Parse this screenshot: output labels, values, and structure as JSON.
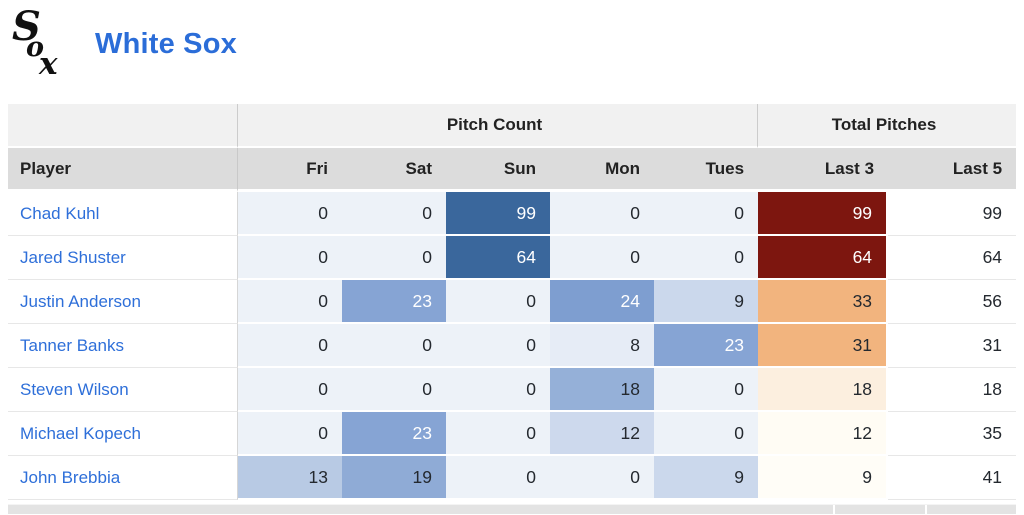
{
  "header": {
    "team_name": "White Sox",
    "logo_label": "Sox",
    "title_color": "#2b6dd8"
  },
  "colors": {
    "link_blue": "#2e6fd9",
    "heat_zero": "#edf2f8",
    "heat_dark_blue": "#3a679c",
    "heat_dark_red": "#7d160f",
    "heat_orange": "#f2b47e",
    "header_group_bg": "#f1f1f1",
    "header_cols_bg": "#dcdcdc"
  },
  "table": {
    "group_headers": [
      {
        "label": "",
        "span": 1
      },
      {
        "label": "Pitch Count",
        "span": 5
      },
      {
        "label": "Total Pitches",
        "span": 2
      }
    ],
    "column_headers": [
      "Player",
      "Fri",
      "Sat",
      "Sun",
      "Mon",
      "Tues",
      "Last 3",
      "Last 5"
    ],
    "rows": [
      {
        "player": "Chad Kuhl",
        "cells": [
          {
            "v": "0",
            "bg": "#edf2f8",
            "fg": "#24292f"
          },
          {
            "v": "0",
            "bg": "#edf2f8",
            "fg": "#24292f"
          },
          {
            "v": "99",
            "bg": "#3a679c",
            "fg": "#ffffff"
          },
          {
            "v": "0",
            "bg": "#edf2f8",
            "fg": "#24292f"
          },
          {
            "v": "0",
            "bg": "#edf2f8",
            "fg": "#24292f"
          },
          {
            "v": "99",
            "bg": "#7d160f",
            "fg": "#ffffff"
          },
          {
            "v": "99",
            "bg": "#ffffff",
            "fg": "#24292f"
          }
        ]
      },
      {
        "player": "Jared Shuster",
        "cells": [
          {
            "v": "0",
            "bg": "#edf2f8",
            "fg": "#24292f"
          },
          {
            "v": "0",
            "bg": "#edf2f8",
            "fg": "#24292f"
          },
          {
            "v": "64",
            "bg": "#3a679c",
            "fg": "#ffffff"
          },
          {
            "v": "0",
            "bg": "#edf2f8",
            "fg": "#24292f"
          },
          {
            "v": "0",
            "bg": "#edf2f8",
            "fg": "#24292f"
          },
          {
            "v": "64",
            "bg": "#7d160f",
            "fg": "#ffffff"
          },
          {
            "v": "64",
            "bg": "#ffffff",
            "fg": "#24292f"
          }
        ]
      },
      {
        "player": "Justin Anderson",
        "cells": [
          {
            "v": "0",
            "bg": "#edf2f8",
            "fg": "#24292f"
          },
          {
            "v": "23",
            "bg": "#86a4d4",
            "fg": "#ffffff"
          },
          {
            "v": "0",
            "bg": "#edf2f8",
            "fg": "#24292f"
          },
          {
            "v": "24",
            "bg": "#7e9ed0",
            "fg": "#ffffff"
          },
          {
            "v": "9",
            "bg": "#cbd8ec",
            "fg": "#24292f"
          },
          {
            "v": "33",
            "bg": "#f2b47e",
            "fg": "#24292f"
          },
          {
            "v": "56",
            "bg": "#ffffff",
            "fg": "#24292f"
          }
        ]
      },
      {
        "player": "Tanner Banks",
        "cells": [
          {
            "v": "0",
            "bg": "#edf2f8",
            "fg": "#24292f"
          },
          {
            "v": "0",
            "bg": "#edf2f8",
            "fg": "#24292f"
          },
          {
            "v": "0",
            "bg": "#edf2f8",
            "fg": "#24292f"
          },
          {
            "v": "8",
            "bg": "#e6ecf6",
            "fg": "#24292f"
          },
          {
            "v": "23",
            "bg": "#86a4d4",
            "fg": "#ffffff"
          },
          {
            "v": "31",
            "bg": "#f2b47e",
            "fg": "#24292f"
          },
          {
            "v": "31",
            "bg": "#ffffff",
            "fg": "#24292f"
          }
        ]
      },
      {
        "player": "Steven Wilson",
        "cells": [
          {
            "v": "0",
            "bg": "#edf2f8",
            "fg": "#24292f"
          },
          {
            "v": "0",
            "bg": "#edf2f8",
            "fg": "#24292f"
          },
          {
            "v": "0",
            "bg": "#edf2f8",
            "fg": "#24292f"
          },
          {
            "v": "18",
            "bg": "#95b0d8",
            "fg": "#24292f"
          },
          {
            "v": "0",
            "bg": "#edf2f8",
            "fg": "#24292f"
          },
          {
            "v": "18",
            "bg": "#fcefdf",
            "fg": "#24292f"
          },
          {
            "v": "18",
            "bg": "#ffffff",
            "fg": "#24292f"
          }
        ]
      },
      {
        "player": "Michael Kopech",
        "cells": [
          {
            "v": "0",
            "bg": "#edf2f8",
            "fg": "#24292f"
          },
          {
            "v": "23",
            "bg": "#86a4d4",
            "fg": "#ffffff"
          },
          {
            "v": "0",
            "bg": "#edf2f8",
            "fg": "#24292f"
          },
          {
            "v": "12",
            "bg": "#cdd9ed",
            "fg": "#24292f"
          },
          {
            "v": "0",
            "bg": "#edf2f8",
            "fg": "#24292f"
          },
          {
            "v": "12",
            "bg": "#fffcf4",
            "fg": "#24292f"
          },
          {
            "v": "35",
            "bg": "#ffffff",
            "fg": "#24292f"
          }
        ]
      },
      {
        "player": "John Brebbia",
        "cells": [
          {
            "v": "13",
            "bg": "#b8cae4",
            "fg": "#24292f"
          },
          {
            "v": "19",
            "bg": "#8fabd6",
            "fg": "#24292f"
          },
          {
            "v": "0",
            "bg": "#edf2f8",
            "fg": "#24292f"
          },
          {
            "v": "0",
            "bg": "#edf2f8",
            "fg": "#24292f"
          },
          {
            "v": "9",
            "bg": "#cbd8ec",
            "fg": "#24292f"
          },
          {
            "v": "9",
            "bg": "#fffdf7",
            "fg": "#24292f"
          },
          {
            "v": "41",
            "bg": "#ffffff",
            "fg": "#24292f"
          }
        ]
      }
    ]
  }
}
